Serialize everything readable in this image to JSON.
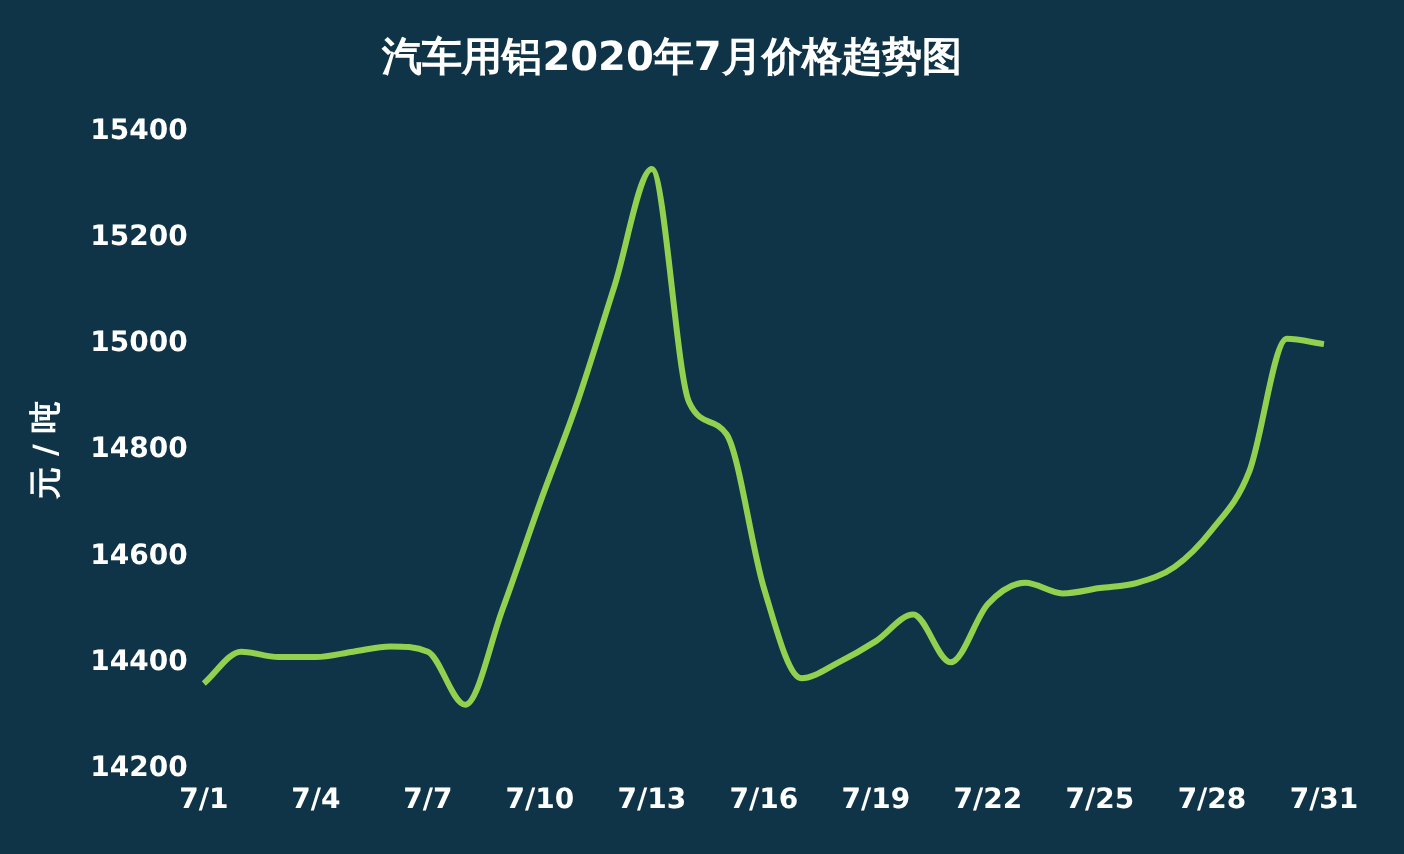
{
  "chart_data": {
    "type": "line",
    "title": "汽车用铝2020年7月价格趋势图",
    "ylabel": "元 / 吨",
    "categories": [
      "7/1",
      null,
      null,
      "7/4",
      null,
      null,
      "7/7",
      null,
      null,
      "7/10",
      null,
      null,
      "7/13",
      null,
      null,
      "7/16",
      null,
      null,
      "7/19",
      null,
      null,
      "7/22",
      null,
      null,
      "7/25",
      null,
      null,
      "7/28",
      null,
      null,
      "7/31"
    ],
    "series": [
      {
        "color": "#92d050",
        "values": [
          14360,
          14420,
          14410,
          14410,
          14420,
          14430,
          14420,
          14320,
          14500,
          14700,
          14890,
          15110,
          15330,
          14890,
          14830,
          14540,
          14370,
          14400,
          14440,
          14490,
          14400,
          14510,
          14550,
          14530,
          14540,
          14550,
          14580,
          14650,
          14760,
          15010,
          15000
        ]
      }
    ],
    "ylim": [
      14200,
      15400
    ],
    "yticks": [
      14200,
      14400,
      14600,
      14800,
      15000,
      15200,
      15400
    ],
    "grid": false,
    "legend": false,
    "marker": "none",
    "line_style": "solid"
  }
}
